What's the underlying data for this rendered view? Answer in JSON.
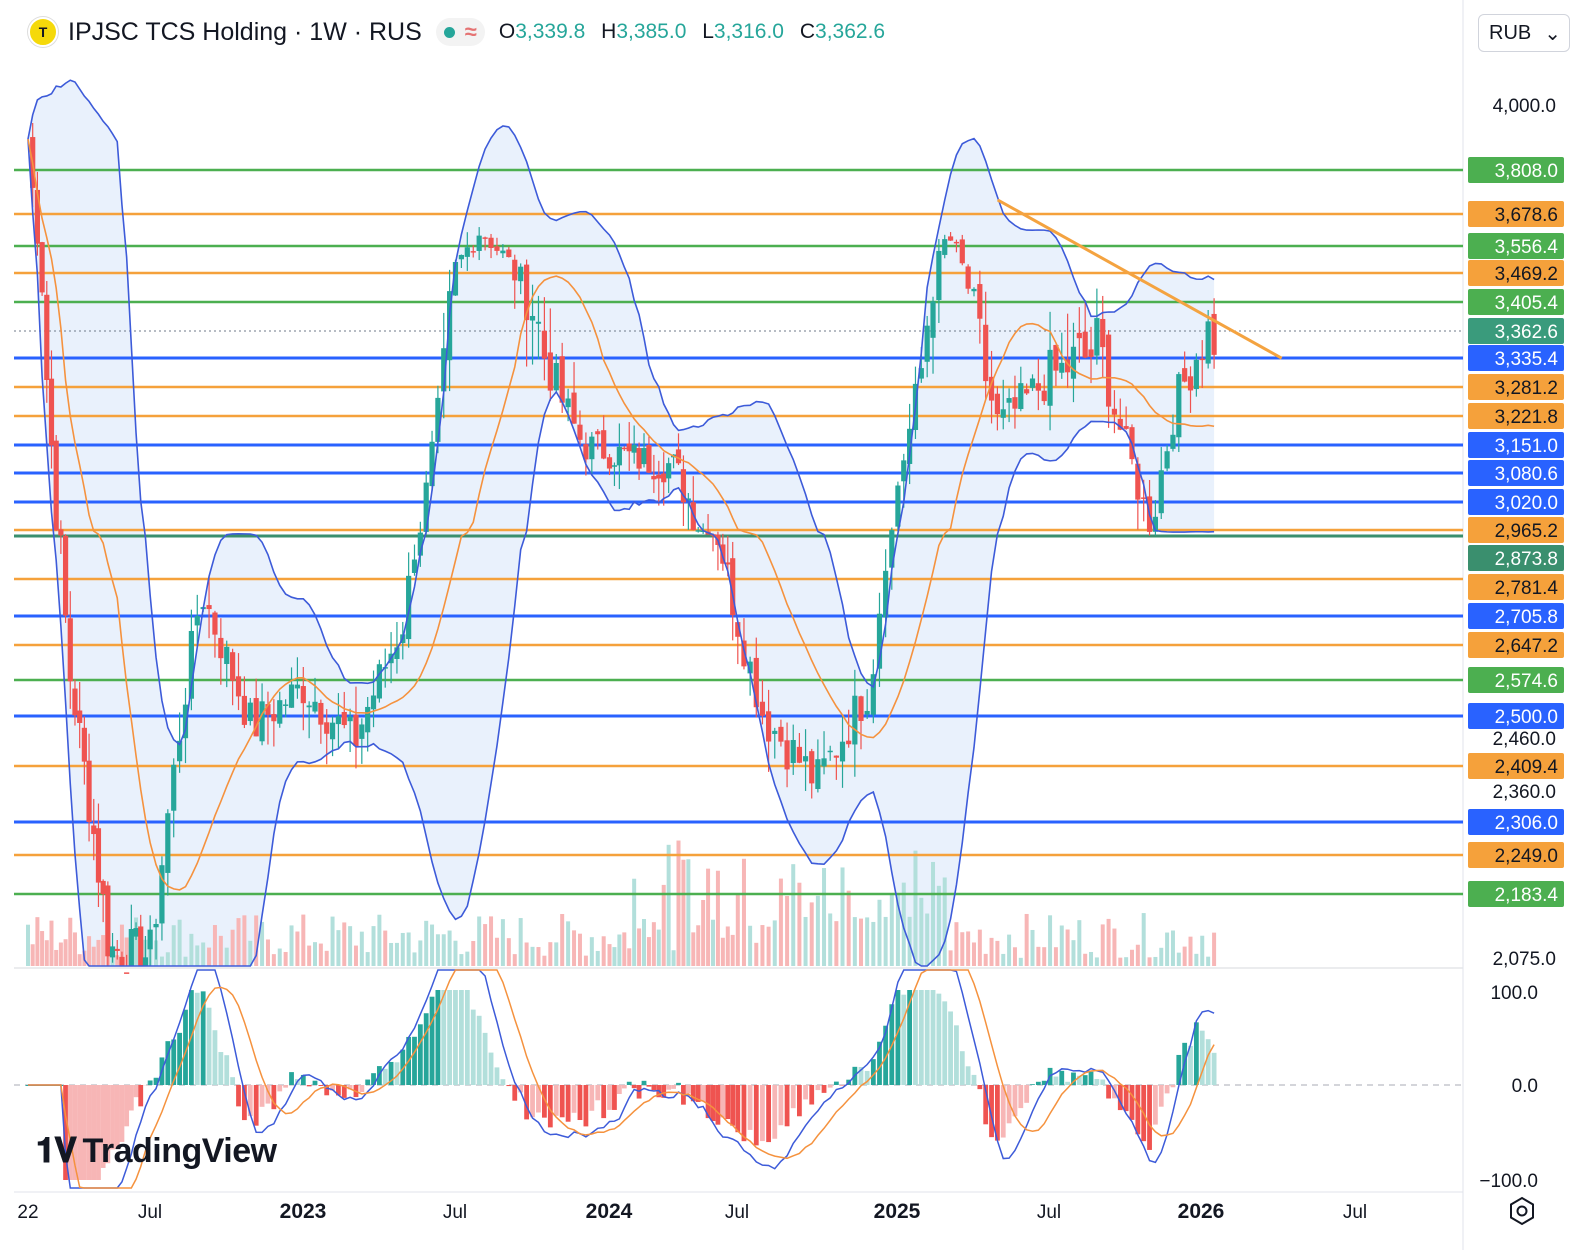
{
  "header": {
    "logo_letter": "T",
    "symbol": "IPJSC TCS Holding · 1W · RUS",
    "ohlc": [
      {
        "key": "O",
        "value": "3,339.8"
      },
      {
        "key": "H",
        "value": "3,385.0"
      },
      {
        "key": "L",
        "value": "3,316.0"
      },
      {
        "key": "C",
        "value": "3,362.6"
      }
    ],
    "currency": "RUB"
  },
  "branding": {
    "name": "TradingView"
  },
  "colors": {
    "up": "#26a69a",
    "down": "#ef5350",
    "up_light": "#b2dfdb",
    "down_light": "#f7b6b6",
    "green_level": "#4caf50",
    "orange_level": "#f5a13b",
    "blue_level": "#2962ff",
    "bb_line": "#3d5bd9",
    "bb_fill": "#e3eefb",
    "ma_line": "#f5923e",
    "trend": "#f4a340",
    "current_tag": "#3a9b7c"
  },
  "chart_data": [
    {
      "type": "candlestick",
      "title": "IPJSC TCS Holding · 1W · RUS",
      "y_axis_ticks": [
        "4,000.0",
        "2,460.0",
        "2,360.0",
        "2,075.0"
      ],
      "x_axis_ticks": [
        "22",
        "Jul",
        "2023",
        "Jul",
        "2024",
        "Jul",
        "2025",
        "Jul",
        "2026",
        "Jul"
      ],
      "price_levels": [
        {
          "value": 3808.0,
          "label": "3,808.0",
          "color": "green"
        },
        {
          "value": 3678.6,
          "label": "3,678.6",
          "color": "orange"
        },
        {
          "value": 3556.4,
          "label": "3,556.4",
          "color": "green"
        },
        {
          "value": 3469.2,
          "label": "3,469.2",
          "color": "orange"
        },
        {
          "value": 3405.4,
          "label": "3,405.4",
          "color": "green"
        },
        {
          "value": 3362.6,
          "label": "3,362.6",
          "color": "current"
        },
        {
          "value": 3335.4,
          "label": "3,335.4",
          "color": "blue"
        },
        {
          "value": 3281.2,
          "label": "3,281.2",
          "color": "orange"
        },
        {
          "value": 3221.8,
          "label": "3,221.8",
          "color": "orange"
        },
        {
          "value": 3151.0,
          "label": "3,151.0",
          "color": "blue"
        },
        {
          "value": 3080.6,
          "label": "3,080.6",
          "color": "blue"
        },
        {
          "value": 3020.0,
          "label": "3,020.0",
          "color": "blue"
        },
        {
          "value": 2965.2,
          "label": "2,965.2",
          "color": "orange"
        },
        {
          "value": 2873.8,
          "label": "2,873.8",
          "color": "darkgreen"
        },
        {
          "value": 2781.4,
          "label": "2,781.4",
          "color": "orange"
        },
        {
          "value": 2705.8,
          "label": "2,705.8",
          "color": "blue"
        },
        {
          "value": 2647.2,
          "label": "2,647.2",
          "color": "orange"
        },
        {
          "value": 2574.6,
          "label": "2,574.6",
          "color": "green"
        },
        {
          "value": 2500.0,
          "label": "2,500.0",
          "color": "blue"
        },
        {
          "value": 2409.4,
          "label": "2,409.4",
          "color": "orange"
        },
        {
          "value": 2306.0,
          "label": "2,306.0",
          "color": "blue"
        },
        {
          "value": 2249.0,
          "label": "2,249.0",
          "color": "orange"
        },
        {
          "value": 2183.4,
          "label": "2,183.4",
          "color": "green"
        }
      ],
      "close_path": [
        {
          "date": "2022-01",
          "close": 3900
        },
        {
          "date": "2022-03",
          "close": 2600
        },
        {
          "date": "2022-05",
          "close": 2090
        },
        {
          "date": "2022-07",
          "close": 2080
        },
        {
          "date": "2022-09",
          "close": 2760
        },
        {
          "date": "2022-11",
          "close": 2480
        },
        {
          "date": "2023-01",
          "close": 2560
        },
        {
          "date": "2023-03",
          "close": 2450
        },
        {
          "date": "2023-05",
          "close": 2700
        },
        {
          "date": "2023-07",
          "close": 3480
        },
        {
          "date": "2023-08",
          "close": 3620
        },
        {
          "date": "2023-10",
          "close": 3400
        },
        {
          "date": "2023-12",
          "close": 3150
        },
        {
          "date": "2024-02",
          "close": 3120
        },
        {
          "date": "2024-04",
          "close": 3100
        },
        {
          "date": "2024-06",
          "close": 2900
        },
        {
          "date": "2024-08",
          "close": 2500
        },
        {
          "date": "2024-10",
          "close": 2380
        },
        {
          "date": "2024-12",
          "close": 2560
        },
        {
          "date": "2025-01",
          "close": 3050
        },
        {
          "date": "2025-03",
          "close": 3600
        },
        {
          "date": "2025-05",
          "close": 3200
        },
        {
          "date": "2025-07",
          "close": 3300
        },
        {
          "date": "2025-09",
          "close": 3350
        },
        {
          "date": "2025-11",
          "close": 2960
        },
        {
          "date": "2025-12",
          "close": 3250
        },
        {
          "date": "2026-01",
          "close": 3362.6
        }
      ],
      "trendline": {
        "from": {
          "date": "2025-03",
          "value": 3720
        },
        "to": {
          "date": "2026-02",
          "value": 3335
        }
      },
      "indicators": [
        "Bollinger Bands",
        "Moving Average"
      ]
    },
    {
      "type": "histogram",
      "title": "",
      "y_axis_ticks": [
        "100.0",
        "0.0",
        "−100.0"
      ],
      "ylim": [
        -100,
        100
      ]
    }
  ]
}
